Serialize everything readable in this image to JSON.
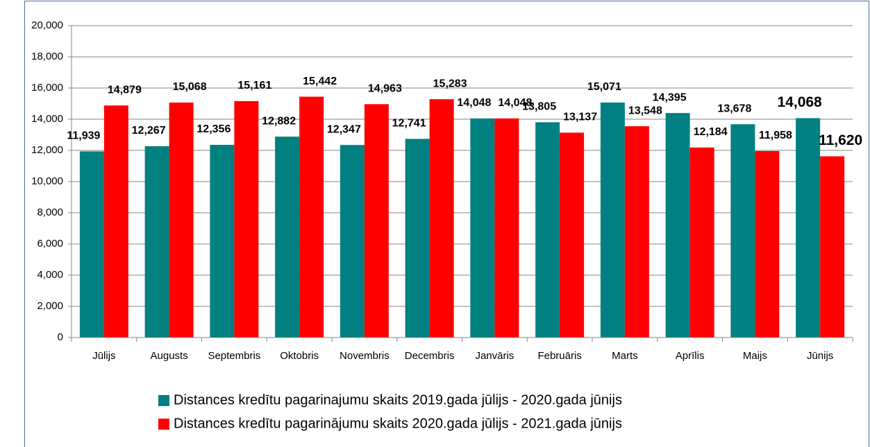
{
  "chart_data": {
    "type": "bar",
    "categories": [
      "Jūlijs",
      "Augusts",
      "Septembris",
      "Oktobris",
      "Novembris",
      "Decembris",
      "Janvāris",
      "Februāris",
      "Marts",
      "Aprīlis",
      "Maijs",
      "Jūnijs"
    ],
    "series": [
      {
        "name": "Distances kredītu pagarinajumu skaits 2019.gada jūlijs - 2020.gada jūnijs",
        "color": "#008080",
        "values": [
          11939,
          12267,
          12356,
          12882,
          12347,
          12741,
          14048,
          13805,
          15071,
          14395,
          13678,
          14068
        ],
        "value_labels": [
          "11,939",
          "12,267",
          "12,356",
          "12,882",
          "12,347",
          "12,741",
          "14,048",
          "13,805",
          "15,071",
          "14,395",
          "13,678",
          "14,068"
        ]
      },
      {
        "name": "Distances kredītu pagarinājumu skaits 2020.gada jūlijs - 2021.gada jūnijs",
        "color": "#ff0000",
        "values": [
          14879,
          15068,
          15161,
          15442,
          14963,
          15283,
          14048,
          13137,
          13548,
          12184,
          11958,
          11620
        ],
        "value_labels": [
          "14,879",
          "15,068",
          "15,161",
          "15,442",
          "14,963",
          "15,283",
          "14,048",
          "13,137",
          "13,548",
          "12,184",
          "11,958",
          "11,620"
        ]
      }
    ],
    "ylim": [
      0,
      20000
    ],
    "yticks": [
      0,
      {
        "value": 2000,
        "label": "2,000"
      },
      {
        "value": 4000,
        "label": "4,000"
      },
      {
        "value": 6000,
        "label": "6,000"
      },
      {
        "value": 8000,
        "label": "8,000"
      },
      {
        "value": 10000,
        "label": "10,000"
      },
      {
        "value": 12000,
        "label": "12,000"
      },
      {
        "value": 14000,
        "label": "14,000"
      },
      {
        "value": 16000,
        "label": "16,000"
      },
      {
        "value": 18000,
        "label": "18,000"
      },
      {
        "value": 20000,
        "label": "20,000"
      }
    ],
    "grid": true,
    "legend": "bottom"
  }
}
